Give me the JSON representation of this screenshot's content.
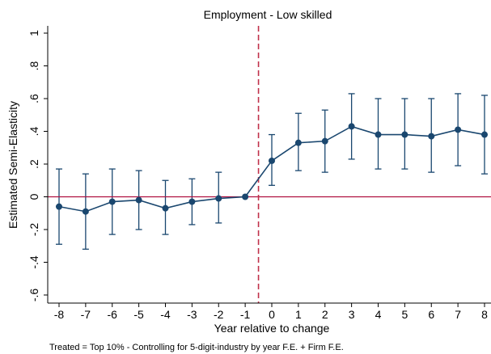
{
  "chart_data": {
    "type": "line",
    "title": "Employment - Low skilled",
    "xlabel": "Year relative to change",
    "ylabel": "Estimated Semi-Elasticity",
    "note": "Treated = Top 10% - Controlling for 5-digit-industry by year F.E. + Firm  F.E.",
    "xlim": [
      -8,
      8
    ],
    "ylim": [
      -0.6,
      1.0
    ],
    "x_ticks": [
      -8,
      -7,
      -6,
      -5,
      -4,
      -3,
      -2,
      -1,
      0,
      1,
      2,
      3,
      4,
      5,
      6,
      7,
      8
    ],
    "x_tick_labels": [
      "-8",
      "-7",
      "-6",
      "-5",
      "-4",
      "-3",
      "-2",
      "-1",
      "0",
      "1",
      "2",
      "3",
      "4",
      "5",
      "6",
      "7",
      "8"
    ],
    "y_ticks": [
      -0.6,
      -0.4,
      -0.2,
      0,
      0.2,
      0.4,
      0.6,
      0.8,
      1.0
    ],
    "y_tick_labels": [
      "-.6",
      "-.4",
      "-.2",
      "0",
      ".2",
      ".4",
      ".6",
      ".8",
      "1"
    ],
    "grid": false,
    "reference_lines": {
      "horizontal_y": 0,
      "vertical_x": -0.5
    },
    "series": [
      {
        "x": [
          -8,
          -7,
          -6,
          -5,
          -4,
          -3,
          -2,
          -1,
          0,
          1,
          2,
          3,
          4,
          5,
          6,
          7,
          8
        ],
        "values": [
          -0.06,
          -0.09,
          -0.03,
          -0.02,
          -0.07,
          -0.03,
          -0.01,
          0.0,
          0.22,
          0.33,
          0.34,
          0.43,
          0.38,
          0.38,
          0.37,
          0.41,
          0.38
        ],
        "ci_lower": [
          -0.29,
          -0.32,
          -0.23,
          -0.2,
          -0.23,
          -0.17,
          -0.16,
          0.0,
          0.07,
          0.16,
          0.15,
          0.23,
          0.17,
          0.17,
          0.15,
          0.19,
          0.14
        ],
        "ci_upper": [
          0.17,
          0.14,
          0.17,
          0.16,
          0.1,
          0.11,
          0.15,
          0.0,
          0.38,
          0.51,
          0.53,
          0.63,
          0.6,
          0.6,
          0.6,
          0.63,
          0.62
        ]
      }
    ],
    "colors": {
      "series": "#1a476f",
      "zero_line": "#b01040",
      "event_line": "#c0304a",
      "axis": "#000000"
    }
  }
}
